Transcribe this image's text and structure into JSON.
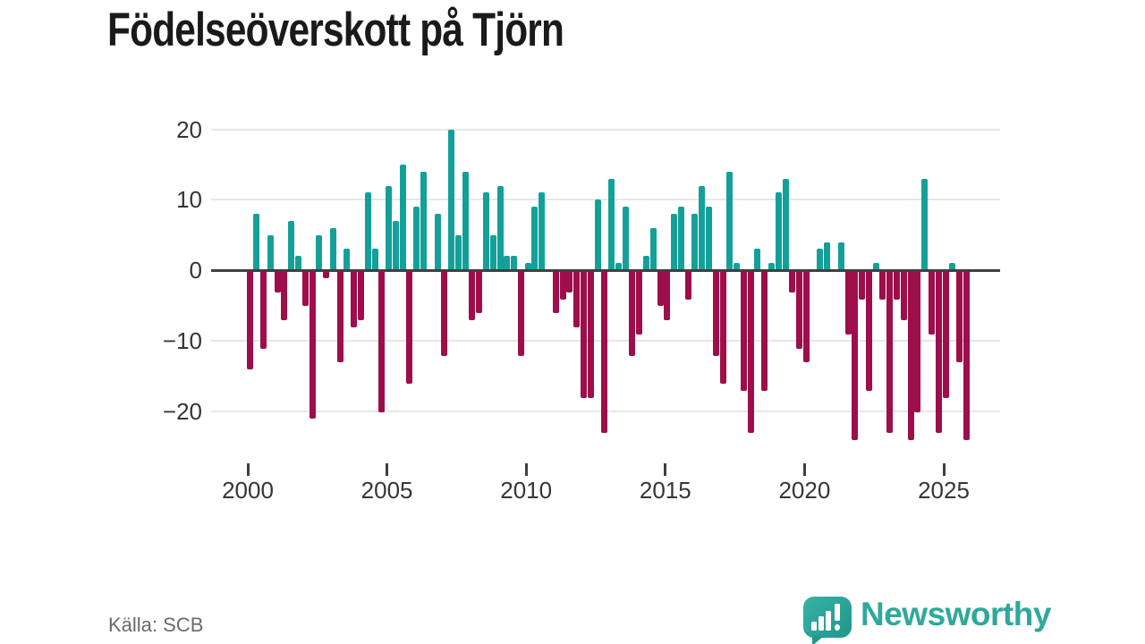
{
  "title": "Födelseöverskott på Tjörn",
  "source_caption": "Källa: SCB",
  "branding": {
    "wordmark": "Newsworthy",
    "logo_icon": "speech-bubble-bar-chart-icon"
  },
  "colors": {
    "positive_bar": "#14a099",
    "negative_bar": "#9d0e4b",
    "zero_axis": "#3f3f3f",
    "gridline": "#e7e7e7",
    "axis_text": "#363636",
    "brand_teal": "#2fa89c"
  },
  "chart_data": {
    "type": "bar",
    "title": "Födelseöverskott på Tjörn",
    "frequency": "quarterly",
    "x_start": "2000-Q1",
    "x_end": "2025-Q4",
    "x_tick_labels": [
      "2000",
      "2005",
      "2010",
      "2015",
      "2020",
      "2025"
    ],
    "y_ticks": [
      20,
      10,
      0,
      -10,
      -20
    ],
    "y_tick_labels": [
      "20",
      "10",
      "0",
      "−10",
      "−20"
    ],
    "ylim": [
      -25,
      22
    ],
    "grid": "horizontal",
    "legend": "none",
    "years": [
      {
        "year": 2000,
        "values": [
          -14,
          8,
          -11,
          5
        ]
      },
      {
        "year": 2001,
        "values": [
          -3,
          -7,
          7,
          2
        ]
      },
      {
        "year": 2002,
        "values": [
          -5,
          -21,
          5,
          -1
        ]
      },
      {
        "year": 2003,
        "values": [
          6,
          -13,
          3,
          -8
        ]
      },
      {
        "year": 2004,
        "values": [
          -7,
          11,
          3,
          -20
        ]
      },
      {
        "year": 2005,
        "values": [
          12,
          7,
          15,
          -16
        ]
      },
      {
        "year": 2006,
        "values": [
          9,
          14,
          0,
          8
        ]
      },
      {
        "year": 2007,
        "values": [
          -12,
          20,
          5,
          14
        ]
      },
      {
        "year": 2008,
        "values": [
          -7,
          -6,
          11,
          5
        ]
      },
      {
        "year": 2009,
        "values": [
          12,
          2,
          2,
          -12
        ]
      },
      {
        "year": 2010,
        "values": [
          1,
          9,
          11,
          0
        ]
      },
      {
        "year": 2011,
        "values": [
          -6,
          -4,
          -3,
          -8
        ]
      },
      {
        "year": 2012,
        "values": [
          -18,
          -18,
          10,
          -23
        ]
      },
      {
        "year": 2013,
        "values": [
          13,
          1,
          9,
          -12
        ]
      },
      {
        "year": 2014,
        "values": [
          -9,
          2,
          6,
          -5
        ]
      },
      {
        "year": 2015,
        "values": [
          -7,
          8,
          9,
          -4
        ]
      },
      {
        "year": 2016,
        "values": [
          8,
          12,
          9,
          -12
        ]
      },
      {
        "year": 2017,
        "values": [
          -16,
          14,
          1,
          -17
        ]
      },
      {
        "year": 2018,
        "values": [
          -23,
          3,
          -17,
          1
        ]
      },
      {
        "year": 2019,
        "values": [
          11,
          13,
          -3,
          -11
        ]
      },
      {
        "year": 2020,
        "values": [
          -13,
          0,
          3,
          4
        ]
      },
      {
        "year": 2021,
        "values": [
          0,
          4,
          -9,
          -24
        ]
      },
      {
        "year": 2022,
        "values": [
          -4,
          -17,
          1,
          -4
        ]
      },
      {
        "year": 2023,
        "values": [
          -23,
          -4,
          -7,
          -24
        ]
      },
      {
        "year": 2024,
        "values": [
          -20,
          13,
          -9,
          -23
        ]
      },
      {
        "year": 2025,
        "values": [
          -18,
          1,
          -13,
          -24
        ]
      }
    ]
  }
}
